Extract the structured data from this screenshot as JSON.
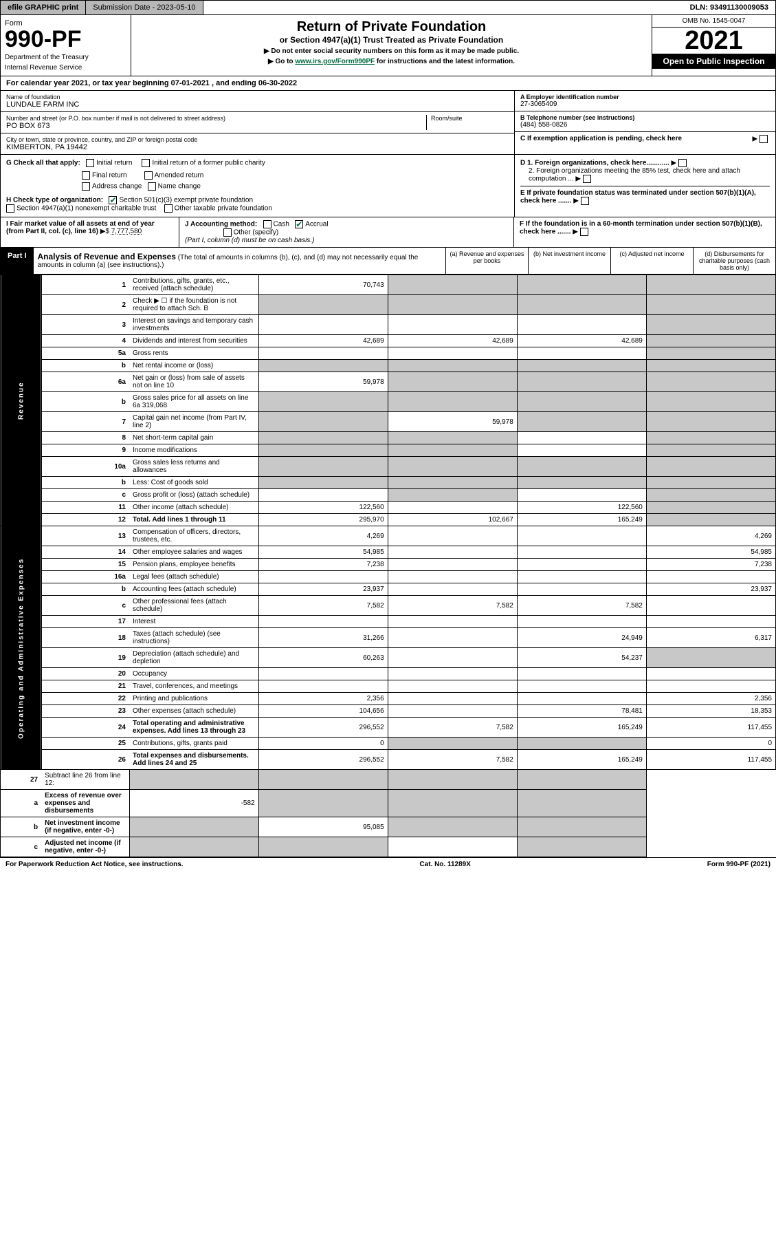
{
  "topbar": {
    "efile": "efile GRAPHIC print",
    "submission_label": "Submission Date - 2023-05-10",
    "dln_label": "DLN: 93491130009053"
  },
  "header": {
    "form_word": "Form",
    "form_number": "990-PF",
    "dept": "Department of the Treasury",
    "irs": "Internal Revenue Service",
    "title": "Return of Private Foundation",
    "subtitle": "or Section 4947(a)(1) Trust Treated as Private Foundation",
    "note1": "▶ Do not enter social security numbers on this form as it may be made public.",
    "note2_pre": "▶ Go to ",
    "note2_link": "www.irs.gov/Form990PF",
    "note2_post": " for instructions and the latest information.",
    "omb": "OMB No. 1545-0047",
    "year": "2021",
    "open": "Open to Public Inspection"
  },
  "calyear": {
    "text_pre": "For calendar year 2021, or tax year beginning ",
    "begin": "07-01-2021",
    "mid": " , and ending ",
    "end": "06-30-2022"
  },
  "id": {
    "name_lbl": "Name of foundation",
    "name": "LUNDALE FARM INC",
    "addr_lbl": "Number and street (or P.O. box number if mail is not delivered to street address)",
    "room_lbl": "Room/suite",
    "addr": "PO BOX 673",
    "city_lbl": "City or town, state or province, country, and ZIP or foreign postal code",
    "city": "KIMBERTON, PA  19442",
    "ein_lbl": "A Employer identification number",
    "ein": "27-3065409",
    "tel_lbl": "B Telephone number (see instructions)",
    "tel": "(484) 558-0826",
    "c_lbl": "C If exemption application is pending, check here"
  },
  "g": {
    "label": "G Check all that apply:",
    "initial": "Initial return",
    "final": "Final return",
    "addr_change": "Address change",
    "initial_former": "Initial return of a former public charity",
    "amended": "Amended return",
    "name_change": "Name change"
  },
  "h": {
    "label": "H Check type of organization:",
    "opt1": "Section 501(c)(3) exempt private foundation",
    "opt2": "Section 4947(a)(1) nonexempt charitable trust",
    "opt3": "Other taxable private foundation"
  },
  "d": {
    "d1": "D 1. Foreign organizations, check here............",
    "d2": "2. Foreign organizations meeting the 85% test, check here and attach computation ...",
    "e": "E  If private foundation status was terminated under section 507(b)(1)(A), check here .......",
    "f": "F  If the foundation is in a 60-month termination under section 507(b)(1)(B), check here ......."
  },
  "fmv": {
    "i_lbl": "I Fair market value of all assets at end of year (from Part II, col. (c), line 16)",
    "i_arrow": "▶$",
    "i_val": "7,777,580",
    "j_lbl": "J Accounting method:",
    "j_cash": "Cash",
    "j_accrual": "Accrual",
    "j_other": "Other (specify)",
    "j_note": "(Part I, column (d) must be on cash basis.)"
  },
  "part1": {
    "tag": "Part I",
    "title": "Analysis of Revenue and Expenses",
    "title_note": "(The total of amounts in columns (b), (c), and (d) may not necessarily equal the amounts in column (a) (see instructions).)",
    "cols": {
      "a": "(a) Revenue and expenses per books",
      "b": "(b) Net investment income",
      "c": "(c) Adjusted net income",
      "d": "(d) Disbursements for charitable purposes (cash basis only)"
    }
  },
  "sections": {
    "revenue": "Revenue",
    "expenses": "Operating and Administrative Expenses"
  },
  "rows": [
    {
      "n": "1",
      "desc": "Contributions, gifts, grants, etc., received (attach schedule)",
      "a": "70,743",
      "b": "",
      "c": "",
      "d": "",
      "shade": [
        "b",
        "c",
        "d"
      ]
    },
    {
      "n": "2",
      "desc": "Check ▶ ☐ if the foundation is not required to attach Sch. B",
      "a": "",
      "b": "",
      "c": "",
      "d": "",
      "shade": [
        "a",
        "b",
        "c",
        "d"
      ]
    },
    {
      "n": "3",
      "desc": "Interest on savings and temporary cash investments",
      "a": "",
      "b": "",
      "c": "",
      "d": "",
      "shade": [
        "d"
      ]
    },
    {
      "n": "4",
      "desc": "Dividends and interest from securities",
      "a": "42,689",
      "b": "42,689",
      "c": "42,689",
      "d": "",
      "shade": [
        "d"
      ]
    },
    {
      "n": "5a",
      "desc": "Gross rents",
      "a": "",
      "b": "",
      "c": "",
      "d": "",
      "shade": [
        "d"
      ]
    },
    {
      "n": "b",
      "desc": "Net rental income or (loss)",
      "a": "",
      "b": "",
      "c": "",
      "d": "",
      "shade": [
        "a",
        "b",
        "c",
        "d"
      ]
    },
    {
      "n": "6a",
      "desc": "Net gain or (loss) from sale of assets not on line 10",
      "a": "59,978",
      "b": "",
      "c": "",
      "d": "",
      "shade": [
        "b",
        "c",
        "d"
      ]
    },
    {
      "n": "b",
      "desc": "Gross sales price for all assets on line 6a           319,068",
      "a": "",
      "b": "",
      "c": "",
      "d": "",
      "shade": [
        "a",
        "b",
        "c",
        "d"
      ]
    },
    {
      "n": "7",
      "desc": "Capital gain net income (from Part IV, line 2)",
      "a": "",
      "b": "59,978",
      "c": "",
      "d": "",
      "shade": [
        "a",
        "c",
        "d"
      ]
    },
    {
      "n": "8",
      "desc": "Net short-term capital gain",
      "a": "",
      "b": "",
      "c": "",
      "d": "",
      "shade": [
        "a",
        "b",
        "d"
      ]
    },
    {
      "n": "9",
      "desc": "Income modifications",
      "a": "",
      "b": "",
      "c": "",
      "d": "",
      "shade": [
        "a",
        "b",
        "d"
      ]
    },
    {
      "n": "10a",
      "desc": "Gross sales less returns and allowances",
      "a": "",
      "b": "",
      "c": "",
      "d": "",
      "shade": [
        "a",
        "b",
        "c",
        "d"
      ]
    },
    {
      "n": "b",
      "desc": "Less: Cost of goods sold",
      "a": "",
      "b": "",
      "c": "",
      "d": "",
      "shade": [
        "a",
        "b",
        "c",
        "d"
      ]
    },
    {
      "n": "c",
      "desc": "Gross profit or (loss) (attach schedule)",
      "a": "",
      "b": "",
      "c": "",
      "d": "",
      "shade": [
        "b",
        "d"
      ]
    },
    {
      "n": "11",
      "desc": "Other income (attach schedule)",
      "a": "122,560",
      "b": "",
      "c": "122,560",
      "d": "",
      "shade": [
        "d"
      ]
    },
    {
      "n": "12",
      "desc": "Total. Add lines 1 through 11",
      "a": "295,970",
      "b": "102,667",
      "c": "165,249",
      "d": "",
      "shade": [
        "d"
      ],
      "bold": true
    }
  ],
  "exp_rows": [
    {
      "n": "13",
      "desc": "Compensation of officers, directors, trustees, etc.",
      "a": "4,269",
      "b": "",
      "c": "",
      "d": "4,269"
    },
    {
      "n": "14",
      "desc": "Other employee salaries and wages",
      "a": "54,985",
      "b": "",
      "c": "",
      "d": "54,985"
    },
    {
      "n": "15",
      "desc": "Pension plans, employee benefits",
      "a": "7,238",
      "b": "",
      "c": "",
      "d": "7,238"
    },
    {
      "n": "16a",
      "desc": "Legal fees (attach schedule)",
      "a": "",
      "b": "",
      "c": "",
      "d": ""
    },
    {
      "n": "b",
      "desc": "Accounting fees (attach schedule)",
      "a": "23,937",
      "b": "",
      "c": "",
      "d": "23,937"
    },
    {
      "n": "c",
      "desc": "Other professional fees (attach schedule)",
      "a": "7,582",
      "b": "7,582",
      "c": "7,582",
      "d": ""
    },
    {
      "n": "17",
      "desc": "Interest",
      "a": "",
      "b": "",
      "c": "",
      "d": ""
    },
    {
      "n": "18",
      "desc": "Taxes (attach schedule) (see instructions)",
      "a": "31,266",
      "b": "",
      "c": "24,949",
      "d": "6,317"
    },
    {
      "n": "19",
      "desc": "Depreciation (attach schedule) and depletion",
      "a": "60,263",
      "b": "",
      "c": "54,237",
      "d": "",
      "shade": [
        "d"
      ]
    },
    {
      "n": "20",
      "desc": "Occupancy",
      "a": "",
      "b": "",
      "c": "",
      "d": ""
    },
    {
      "n": "21",
      "desc": "Travel, conferences, and meetings",
      "a": "",
      "b": "",
      "c": "",
      "d": ""
    },
    {
      "n": "22",
      "desc": "Printing and publications",
      "a": "2,356",
      "b": "",
      "c": "",
      "d": "2,356"
    },
    {
      "n": "23",
      "desc": "Other expenses (attach schedule)",
      "a": "104,656",
      "b": "",
      "c": "78,481",
      "d": "18,353"
    },
    {
      "n": "24",
      "desc": "Total operating and administrative expenses. Add lines 13 through 23",
      "a": "296,552",
      "b": "7,582",
      "c": "165,249",
      "d": "117,455",
      "bold": true
    },
    {
      "n": "25",
      "desc": "Contributions, gifts, grants paid",
      "a": "0",
      "b": "",
      "c": "",
      "d": "0",
      "shade": [
        "b",
        "c"
      ]
    },
    {
      "n": "26",
      "desc": "Total expenses and disbursements. Add lines 24 and 25",
      "a": "296,552",
      "b": "7,582",
      "c": "165,249",
      "d": "117,455",
      "bold": true
    }
  ],
  "bottom_rows": [
    {
      "n": "27",
      "desc": "Subtract line 26 from line 12:",
      "a": "",
      "b": "",
      "c": "",
      "d": "",
      "shade": [
        "a",
        "b",
        "c",
        "d"
      ]
    },
    {
      "n": "a",
      "desc": "Excess of revenue over expenses and disbursements",
      "a": "-582",
      "b": "",
      "c": "",
      "d": "",
      "shade": [
        "b",
        "c",
        "d"
      ],
      "bold": true
    },
    {
      "n": "b",
      "desc": "Net investment income (if negative, enter -0-)",
      "a": "",
      "b": "95,085",
      "c": "",
      "d": "",
      "shade": [
        "a",
        "c",
        "d"
      ],
      "bold": true
    },
    {
      "n": "c",
      "desc": "Adjusted net income (if negative, enter -0-)",
      "a": "",
      "b": "",
      "c": "",
      "d": "",
      "shade": [
        "a",
        "b",
        "d"
      ],
      "bold": true
    }
  ],
  "footer": {
    "left": "For Paperwork Reduction Act Notice, see instructions.",
    "mid": "Cat. No. 11289X",
    "right": "Form 990-PF (2021)"
  },
  "colors": {
    "green": "#006b3f",
    "shade": "#c8c8c8",
    "topbar": "#b8b8b8"
  }
}
